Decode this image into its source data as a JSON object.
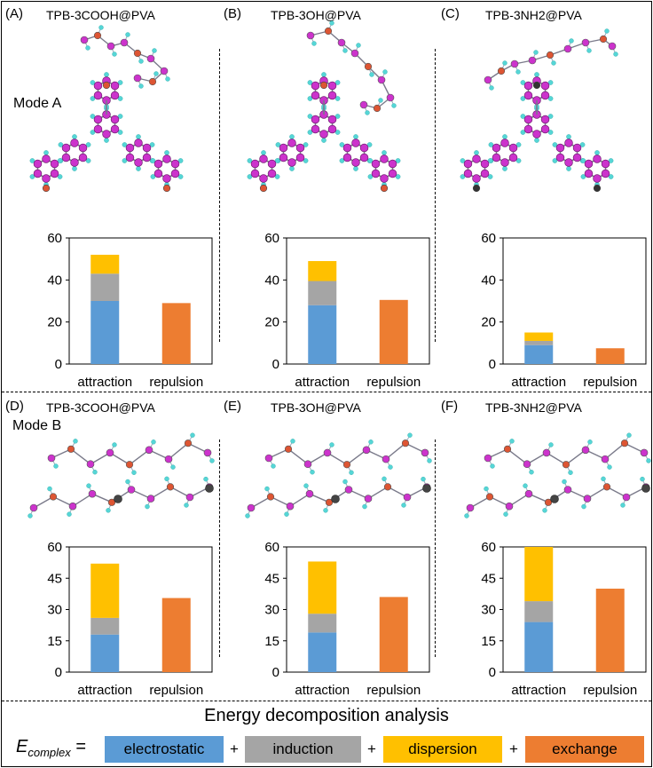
{
  "panels": [
    {
      "label": "(A)",
      "title": "TPB-3COOH@PVA",
      "mode": "Mode A"
    },
    {
      "label": "(B)",
      "title": "TPB-3OH@PVA"
    },
    {
      "label": "(C)",
      "title": "TPB-3NH2@PVA"
    },
    {
      "label": "(D)",
      "title": "TPB-3COOH@PVA",
      "mode": "Mode B"
    },
    {
      "label": "(E)",
      "title": "TPB-3OH@PVA"
    },
    {
      "label": "(F)",
      "title": "TPB-3NH2@PVA"
    }
  ],
  "chart_data": [
    {
      "id": "A",
      "type": "bar",
      "stacked": true,
      "title": "TPB-3COOH@PVA",
      "categories": [
        "attraction",
        "repulsion"
      ],
      "ylim": [
        0,
        60
      ],
      "yticks": [
        0,
        20,
        40,
        60
      ],
      "series": [
        {
          "name": "electrostatic",
          "values": [
            30,
            0
          ]
        },
        {
          "name": "induction",
          "values": [
            13,
            0
          ]
        },
        {
          "name": "dispersion",
          "values": [
            9,
            0
          ]
        },
        {
          "name": "exchange",
          "values": [
            0,
            29
          ]
        }
      ]
    },
    {
      "id": "B",
      "type": "bar",
      "stacked": true,
      "title": "TPB-3OH@PVA",
      "categories": [
        "attraction",
        "repulsion"
      ],
      "ylim": [
        0,
        60
      ],
      "yticks": [
        0,
        20,
        40,
        60
      ],
      "series": [
        {
          "name": "electrostatic",
          "values": [
            28,
            0
          ]
        },
        {
          "name": "induction",
          "values": [
            11.5,
            0
          ]
        },
        {
          "name": "dispersion",
          "values": [
            9.5,
            0
          ]
        },
        {
          "name": "exchange",
          "values": [
            0,
            30.5
          ]
        }
      ]
    },
    {
      "id": "C",
      "type": "bar",
      "stacked": true,
      "title": "TPB-3NH2@PVA",
      "categories": [
        "attraction",
        "repulsion"
      ],
      "ylim": [
        0,
        60
      ],
      "yticks": [
        0,
        20,
        40,
        60
      ],
      "series": [
        {
          "name": "electrostatic",
          "values": [
            9,
            0
          ]
        },
        {
          "name": "induction",
          "values": [
            2,
            0
          ]
        },
        {
          "name": "dispersion",
          "values": [
            4,
            0
          ]
        },
        {
          "name": "exchange",
          "values": [
            0,
            7.5
          ]
        }
      ]
    },
    {
      "id": "D",
      "type": "bar",
      "stacked": true,
      "title": "TPB-3COOH@PVA",
      "categories": [
        "attraction",
        "repulsion"
      ],
      "ylim": [
        0,
        60
      ],
      "yticks": [
        0,
        15,
        30,
        45,
        60
      ],
      "series": [
        {
          "name": "electrostatic",
          "values": [
            18,
            0
          ]
        },
        {
          "name": "induction",
          "values": [
            8,
            0
          ]
        },
        {
          "name": "dispersion",
          "values": [
            26,
            0
          ]
        },
        {
          "name": "exchange",
          "values": [
            0,
            35.5
          ]
        }
      ]
    },
    {
      "id": "E",
      "type": "bar",
      "stacked": true,
      "title": "TPB-3OH@PVA",
      "categories": [
        "attraction",
        "repulsion"
      ],
      "ylim": [
        0,
        60
      ],
      "yticks": [
        0,
        15,
        30,
        45,
        60
      ],
      "series": [
        {
          "name": "electrostatic",
          "values": [
            19,
            0
          ]
        },
        {
          "name": "induction",
          "values": [
            9,
            0
          ]
        },
        {
          "name": "dispersion",
          "values": [
            25,
            0
          ]
        },
        {
          "name": "exchange",
          "values": [
            0,
            36
          ]
        }
      ]
    },
    {
      "id": "F",
      "type": "bar",
      "stacked": true,
      "title": "TPB-3NH2@PVA",
      "categories": [
        "attraction",
        "repulsion"
      ],
      "ylim": [
        0,
        60
      ],
      "yticks": [
        0,
        15,
        30,
        45,
        60
      ],
      "series": [
        {
          "name": "electrostatic",
          "values": [
            24,
            0
          ]
        },
        {
          "name": "induction",
          "values": [
            10,
            0
          ]
        },
        {
          "name": "dispersion",
          "values": [
            26,
            0
          ]
        },
        {
          "name": "exchange",
          "values": [
            0,
            40
          ]
        }
      ]
    }
  ],
  "legend": {
    "title": "Energy decomposition analysis",
    "lhs_var": "E",
    "lhs_sub": "complex",
    "equals": "=",
    "plus": "+",
    "items": [
      {
        "name": "electrostatic",
        "color": "#5b9bd5"
      },
      {
        "name": "induction",
        "color": "#a5a5a5"
      },
      {
        "name": "dispersion",
        "color": "#ffc000"
      },
      {
        "name": "exchange",
        "color": "#ed7d31"
      }
    ]
  },
  "colors": {
    "atom_carbon": "#cc33cc",
    "atom_hydrogen": "#55d6d6",
    "atom_oxygen": "#dd5533",
    "atom_nitrogen": "#333333"
  }
}
